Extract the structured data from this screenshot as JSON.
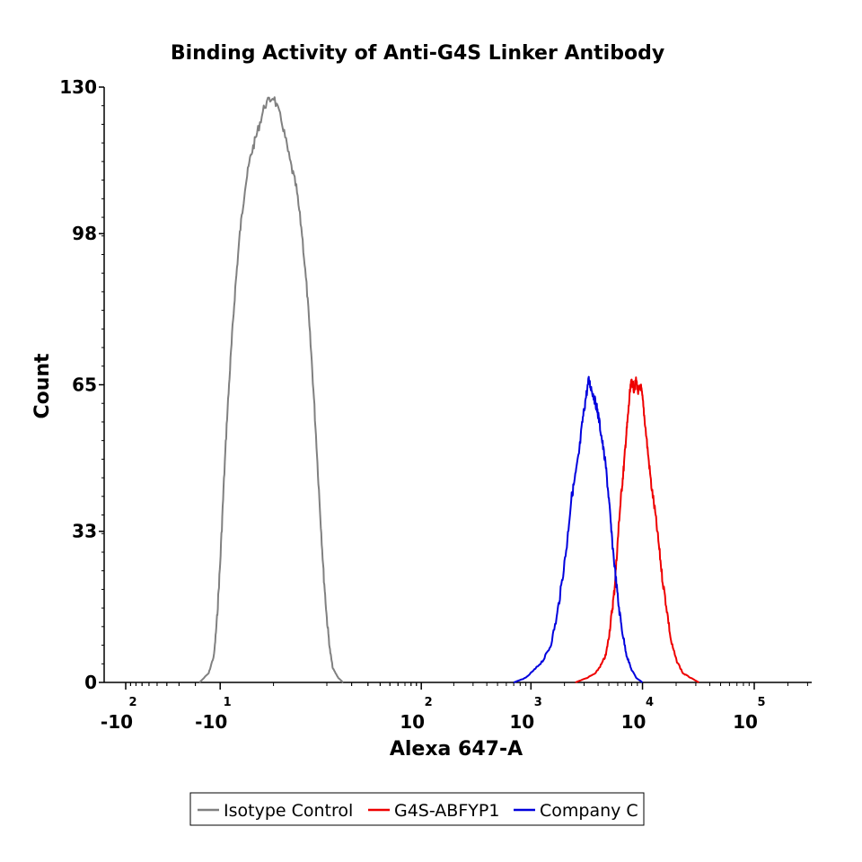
{
  "chart_data": {
    "type": "line",
    "title": "Binding Activity of Anti-G4S Linker Antibody",
    "xlabel": "Alexa 647-A",
    "ylabel": "Count",
    "x_scale": "biexponential",
    "ylim": [
      0,
      130
    ],
    "yticks": [
      "0",
      "33",
      "65",
      "98",
      "130"
    ],
    "xticks": [
      {
        "base": "-10",
        "exp": "2",
        "value": -100
      },
      {
        "base": "-10",
        "exp": "1",
        "value": -10
      },
      {
        "base": "10",
        "exp": "2",
        "value": 100
      },
      {
        "base": "10",
        "exp": "3",
        "value": 1000
      },
      {
        "base": "10",
        "exp": "4",
        "value": 10000
      },
      {
        "base": "10",
        "exp": "5",
        "value": 100000
      }
    ],
    "legend_position": "bottom",
    "series": [
      {
        "name": "Isotype Control",
        "color": "#808080",
        "points": [
          [
            -18,
            0
          ],
          [
            -14,
            2
          ],
          [
            -12,
            6
          ],
          [
            -11,
            14
          ],
          [
            -10,
            26
          ],
          [
            -9,
            42
          ],
          [
            -8,
            58
          ],
          [
            -7,
            72
          ],
          [
            -6,
            86
          ],
          [
            -5,
            98
          ],
          [
            -4,
            108
          ],
          [
            -3,
            115
          ],
          [
            -2,
            120
          ],
          [
            -1,
            126
          ],
          [
            0,
            128
          ],
          [
            1,
            122
          ],
          [
            2,
            114
          ],
          [
            3,
            108
          ],
          [
            4,
            98
          ],
          [
            5,
            85
          ],
          [
            6,
            70
          ],
          [
            7,
            54
          ],
          [
            8,
            38
          ],
          [
            9,
            24
          ],
          [
            10,
            14
          ],
          [
            11,
            7
          ],
          [
            12,
            3
          ],
          [
            14,
            1
          ],
          [
            16,
            0
          ]
        ]
      },
      {
        "name": "G4S-ABFYP1",
        "color": "#ee0000",
        "points": [
          [
            2500,
            0
          ],
          [
            3200,
            1
          ],
          [
            3800,
            2
          ],
          [
            4300,
            4
          ],
          [
            4700,
            6
          ],
          [
            5000,
            10
          ],
          [
            5300,
            15
          ],
          [
            5600,
            20
          ],
          [
            5900,
            28
          ],
          [
            6200,
            36
          ],
          [
            6500,
            42
          ],
          [
            6800,
            47
          ],
          [
            7100,
            53
          ],
          [
            7400,
            58
          ],
          [
            7700,
            63
          ],
          [
            8000,
            66
          ],
          [
            8400,
            64
          ],
          [
            8800,
            66
          ],
          [
            9200,
            63
          ],
          [
            9600,
            65
          ],
          [
            10000,
            62
          ],
          [
            10500,
            57
          ],
          [
            11200,
            50
          ],
          [
            12000,
            43
          ],
          [
            13000,
            37
          ],
          [
            14000,
            30
          ],
          [
            15000,
            23
          ],
          [
            16500,
            16
          ],
          [
            18000,
            9
          ],
          [
            20000,
            5
          ],
          [
            23000,
            2
          ],
          [
            27000,
            1
          ],
          [
            32000,
            0
          ]
        ]
      },
      {
        "name": "Company C",
        "color": "#0000dd",
        "points": [
          [
            700,
            0
          ],
          [
            900,
            1
          ],
          [
            1100,
            3
          ],
          [
            1300,
            5
          ],
          [
            1500,
            8
          ],
          [
            1700,
            14
          ],
          [
            1900,
            22
          ],
          [
            2100,
            30
          ],
          [
            2300,
            40
          ],
          [
            2500,
            45
          ],
          [
            2700,
            50
          ],
          [
            2900,
            57
          ],
          [
            3100,
            62
          ],
          [
            3300,
            66
          ],
          [
            3500,
            64
          ],
          [
            3700,
            62
          ],
          [
            3900,
            60
          ],
          [
            4100,
            57
          ],
          [
            4400,
            52
          ],
          [
            4700,
            47
          ],
          [
            5000,
            40
          ],
          [
            5300,
            32
          ],
          [
            5700,
            24
          ],
          [
            6100,
            17
          ],
          [
            6600,
            11
          ],
          [
            7200,
            6
          ],
          [
            7900,
            3
          ],
          [
            8800,
            1
          ],
          [
            10000,
            0
          ]
        ]
      }
    ]
  }
}
